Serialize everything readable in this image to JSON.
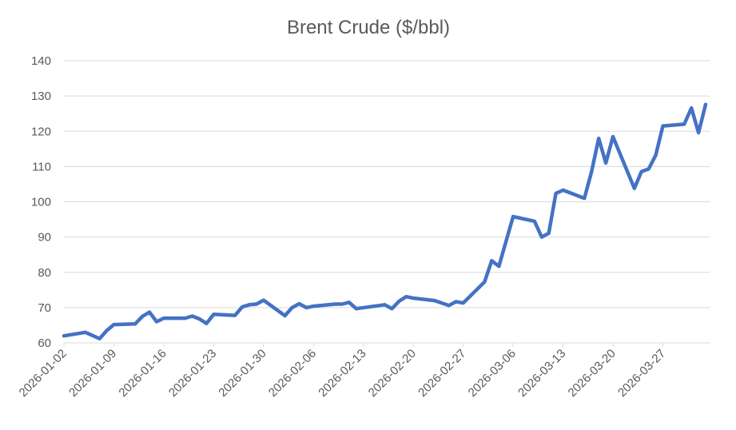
{
  "chart_data": {
    "type": "line",
    "title": "Brent Crude ($/bbl)",
    "x": [
      "2026-01-02",
      "2026-01-05",
      "2026-01-07",
      "2026-01-08",
      "2026-01-09",
      "2026-01-12",
      "2026-01-13",
      "2026-01-14",
      "2026-01-15",
      "2026-01-16",
      "2026-01-19",
      "2026-01-20",
      "2026-01-21",
      "2026-01-22",
      "2026-01-23",
      "2026-01-26",
      "2026-01-27",
      "2026-01-28",
      "2026-01-29",
      "2026-01-30",
      "2026-02-02",
      "2026-02-03",
      "2026-02-04",
      "2026-02-05",
      "2026-02-06",
      "2026-02-09",
      "2026-02-10",
      "2026-02-11",
      "2026-02-12",
      "2026-02-16",
      "2026-02-17",
      "2026-02-18",
      "2026-02-19",
      "2026-02-20",
      "2026-02-23",
      "2026-02-25",
      "2026-02-26",
      "2026-02-27",
      "2026-03-02",
      "2026-03-03",
      "2026-03-04",
      "2026-03-06",
      "2026-03-09",
      "2026-03-10",
      "2026-03-11",
      "2026-03-12",
      "2026-03-13",
      "2026-03-16",
      "2026-03-17",
      "2026-03-18",
      "2026-03-19",
      "2026-03-20",
      "2026-03-23",
      "2026-03-24",
      "2026-03-25",
      "2026-03-26",
      "2026-03-27",
      "2026-03-30",
      "2026-03-31",
      "2026-04-01",
      "2026-04-02"
    ],
    "series": [
      {
        "name": "Brent Crude",
        "color": "#4472c4",
        "values": [
          62.0,
          63.0,
          61.2,
          63.5,
          65.2,
          65.4,
          67.5,
          68.7,
          66.0,
          67.0,
          67.0,
          67.6,
          66.8,
          65.5,
          68.1,
          67.8,
          70.2,
          70.8,
          71.0,
          72.1,
          67.7,
          70.0,
          71.1,
          70.0,
          70.4,
          71.0,
          71.0,
          71.5,
          69.7,
          70.8,
          69.7,
          71.8,
          73.1,
          72.7,
          72.0,
          70.6,
          71.7,
          71.3,
          77.3,
          83.3,
          81.7,
          95.8,
          94.5,
          90.0,
          91.1,
          102.4,
          103.3,
          101.0,
          108.5,
          118.0,
          111.0,
          118.5,
          103.8,
          108.6,
          109.3,
          113.2,
          121.5,
          122.0,
          126.6,
          119.6,
          127.6
        ]
      }
    ],
    "xlim": [
      "2026-01-02",
      "2026-04-02"
    ],
    "xticks": [
      "2026-01-02",
      "2026-01-09",
      "2026-01-16",
      "2026-01-23",
      "2026-01-30",
      "2026-02-06",
      "2026-02-13",
      "2026-02-20",
      "2026-02-27",
      "2026-03-06",
      "2026-03-13",
      "2026-03-20",
      "2026-03-27"
    ],
    "ylim": [
      60,
      140
    ],
    "yticks": [
      60,
      70,
      80,
      90,
      100,
      110,
      120,
      130,
      140
    ],
    "grid": true
  }
}
